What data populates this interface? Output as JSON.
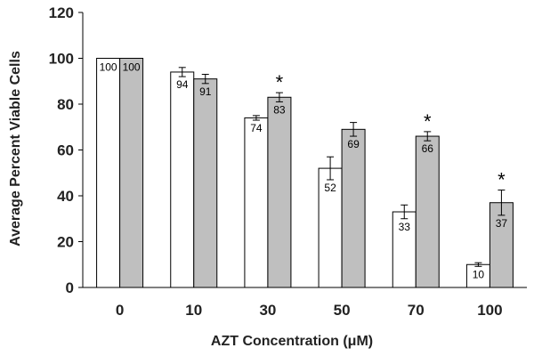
{
  "chart_data": {
    "type": "bar",
    "title": "",
    "xlabel": "AZT Concentration (μM)",
    "ylabel": "Average Percent Viable Cells",
    "ylim": [
      0,
      120
    ],
    "yticks": [
      0,
      20,
      40,
      60,
      80,
      100,
      120
    ],
    "grid": false,
    "legend": "none",
    "categories": [
      "0",
      "10",
      "30",
      "50",
      "70",
      "100"
    ],
    "series": [
      {
        "color": "#ffffff",
        "values": [
          100,
          94,
          74,
          52,
          33,
          10
        ],
        "errors": [
          0,
          2,
          1,
          5,
          3,
          0.8
        ],
        "labels": [
          "100",
          "94",
          "74",
          "52",
          "33",
          "10"
        ],
        "significant": [
          false,
          false,
          false,
          false,
          false,
          false
        ]
      },
      {
        "color": "#bfbfbf",
        "values": [
          100,
          91,
          83,
          69,
          66,
          37
        ],
        "errors": [
          0,
          2,
          2,
          3,
          2,
          5.5
        ],
        "labels": [
          "100",
          "91",
          "83",
          "69",
          "66",
          "37"
        ],
        "significant": [
          false,
          false,
          true,
          false,
          true,
          true
        ]
      }
    ],
    "significance_marker": "*"
  }
}
